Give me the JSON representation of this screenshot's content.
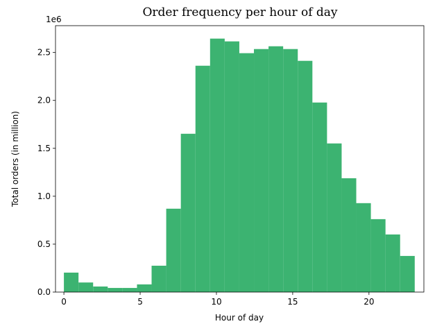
{
  "chart_data": {
    "type": "histogram",
    "title": "Order frequency per hour of day",
    "xlabel": "Hour of day",
    "ylabel": "Total orders (in million)",
    "y_offset_label": "1e6",
    "color": "#3cb371",
    "bins": [
      0,
      0.9583,
      1.9167,
      2.875,
      3.8333,
      4.7917,
      5.75,
      6.7083,
      7.6667,
      8.625,
      9.5833,
      10.5417,
      11.5,
      12.4583,
      13.4167,
      14.375,
      15.3333,
      16.2917,
      17.25,
      18.2083,
      19.1667,
      20.125,
      21.0833,
      22.0417,
      23
    ],
    "values": [
      203000,
      100000,
      58000,
      43000,
      43000,
      80000,
      275000,
      870000,
      1652000,
      2362000,
      2645000,
      2616000,
      2493000,
      2536000,
      2565000,
      2536000,
      2413000,
      1978000,
      1551000,
      1188000,
      928000,
      761000,
      601000,
      377000
    ],
    "xlim": [
      -0.55,
      23.6
    ],
    "xticks": [
      0,
      5,
      10,
      15,
      20
    ],
    "ylim": [
      0,
      2780000
    ],
    "yticks": [
      {
        "value": 0,
        "label": "0.0"
      },
      {
        "value": 500000,
        "label": "0.5"
      },
      {
        "value": 1000000,
        "label": "1.0"
      },
      {
        "value": 1500000,
        "label": "1.5"
      },
      {
        "value": 2000000,
        "label": "2.0"
      },
      {
        "value": 2500000,
        "label": "2.5"
      }
    ]
  }
}
